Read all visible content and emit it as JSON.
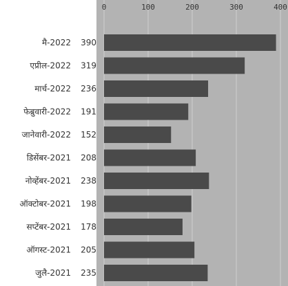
{
  "chart_data": {
    "type": "bar",
    "orientation": "horizontal",
    "categories": [
      "मै-2022",
      "एप्रील-2022",
      "मार्च-2022",
      "फेब्रुवारी-2022",
      "जानेवारी-2022",
      "डिसेंबर-2021",
      "नोव्हेंबर-2021",
      "ऑक्टोबर-2021",
      "सप्टेंबर-2021",
      "ऑगस्ट-2021",
      "जुलै-2021"
    ],
    "values": [
      390,
      319,
      236,
      191,
      152,
      208,
      238,
      198,
      178,
      205,
      235
    ],
    "value_labels": [
      "390",
      "319",
      "236",
      "191",
      "152",
      "208",
      "238",
      "198",
      "178",
      "205",
      "235"
    ],
    "xticks": [
      "0",
      "100",
      "200",
      "300",
      "400"
    ],
    "xlim": [
      0,
      400
    ],
    "xaxis_position": "top",
    "grid": true,
    "title": "",
    "xlabel": "",
    "ylabel": "",
    "colors": {
      "bar": "#4a4a4a",
      "plot_bg": "#b3b3b3",
      "grid": "#cfcfcf",
      "text": "#333333"
    }
  }
}
